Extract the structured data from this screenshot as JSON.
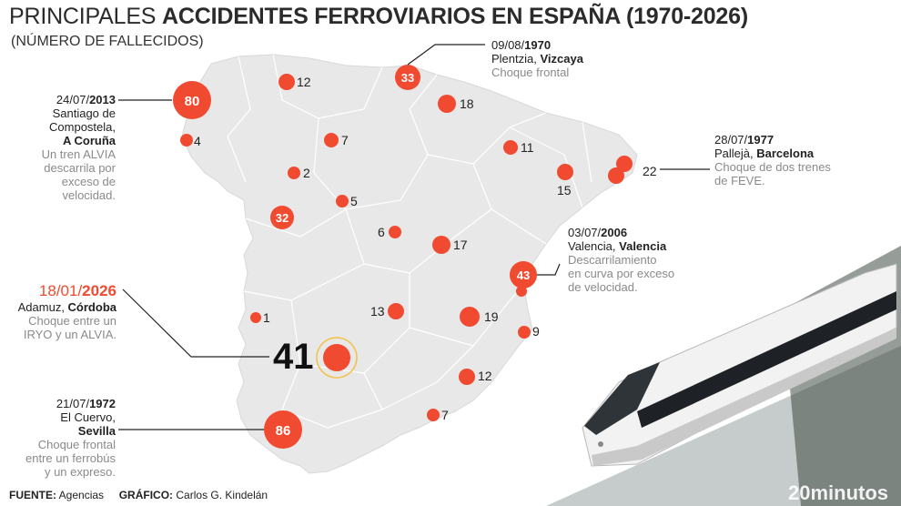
{
  "header": {
    "title_light": "PRINCIPALES",
    "title_bold": "ACCIDENTES FERROVIARIOS EN ESPAÑA (1970-2026)",
    "subtitle": "(NÚMERO DE FALLECIDOS)"
  },
  "markers": [
    {
      "id": "m80",
      "value": "80"
    },
    {
      "id": "m12a",
      "value": "12"
    },
    {
      "id": "m33",
      "value": "33"
    },
    {
      "id": "m18",
      "value": "18"
    },
    {
      "id": "m4",
      "value": "4"
    },
    {
      "id": "m7a",
      "value": "7"
    },
    {
      "id": "m11",
      "value": "11"
    },
    {
      "id": "m2",
      "value": "2"
    },
    {
      "id": "m15",
      "value": "15"
    },
    {
      "id": "m22",
      "value": "22"
    },
    {
      "id": "m5",
      "value": "5"
    },
    {
      "id": "m32",
      "value": "32"
    },
    {
      "id": "m6",
      "value": "6"
    },
    {
      "id": "m17",
      "value": "17"
    },
    {
      "id": "m43",
      "value": "43"
    },
    {
      "id": "m1",
      "value": "1"
    },
    {
      "id": "m13",
      "value": "13"
    },
    {
      "id": "m19",
      "value": "19"
    },
    {
      "id": "m9",
      "value": "9"
    },
    {
      "id": "m41",
      "value": "41"
    },
    {
      "id": "m12b",
      "value": "12"
    },
    {
      "id": "m7b",
      "value": "7"
    },
    {
      "id": "m86",
      "value": "86"
    }
  ],
  "annotations": {
    "a2013": {
      "date_prefix": "24/07/",
      "year": "2013",
      "place_line1": "Santiago de",
      "place_line2": "Compostela,",
      "place_bold": "A Coruña",
      "desc": [
        "Un tren ALVIA",
        "descarrila por",
        "exceso de",
        "velocidad."
      ]
    },
    "a1970": {
      "date_prefix": "09/08/",
      "year": "1970",
      "place": "Plentzia, ",
      "place_bold": "Vizcaya",
      "desc": [
        "Choque frontal"
      ]
    },
    "a1977": {
      "date_prefix": "28/07/",
      "year": "1977",
      "place": "Pallejà, ",
      "place_bold": "Barcelona",
      "desc": [
        "Choque de dos trenes",
        "de FEVE."
      ]
    },
    "a2006": {
      "date_prefix": "03/07/",
      "year": "2006",
      "place": "Valencia, ",
      "place_bold": "Valencia",
      "desc": [
        "Descarrilamiento",
        "en curva por exceso",
        "de velocidad."
      ]
    },
    "a2026": {
      "date_prefix": "18/01/",
      "year": "2026",
      "place": "Adamuz, ",
      "place_bold": "Córdoba",
      "desc": [
        "Choque entre un",
        "IRYO y un ALVIA."
      ]
    },
    "a1972": {
      "date_prefix": "21/07/",
      "year": "1972",
      "place_line1": "El Cuervo,",
      "place_bold": "Sevilla",
      "desc": [
        "Choque frontal",
        "entre un ferrobús",
        "y un expreso."
      ]
    }
  },
  "footer": {
    "source_label": "FUENTE:",
    "source": "Agencias",
    "graphic_label": "GRÁFICO:",
    "graphic": "Carlos G. Kindelán"
  },
  "brand": "20minutos",
  "colors": {
    "accent": "#f04a30",
    "map_fill": "#e6e6e6",
    "map_lines": "#ffffff"
  }
}
